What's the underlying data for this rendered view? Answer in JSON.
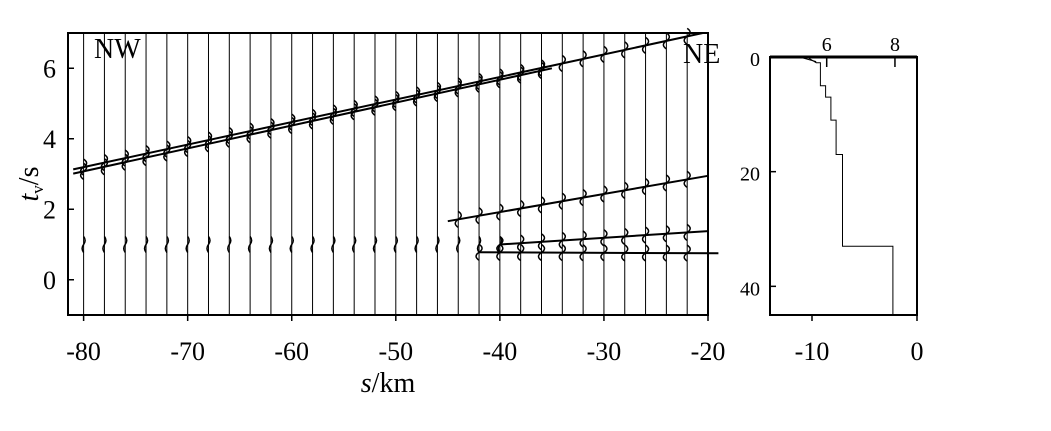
{
  "chart_data": [
    {
      "type": "line",
      "panel": "seismic record section",
      "xlabel_var": "s",
      "xlabel_unit": "/km",
      "ylabel_var": "t",
      "ylabel_sub": "v",
      "ylabel_unit": "/s",
      "xlim": [
        -81.5,
        -20
      ],
      "ylim": [
        -1,
        7
      ],
      "x_ticks": [
        -80,
        -70,
        -60,
        -50,
        -40,
        -30,
        -20
      ],
      "y_ticks": [
        0,
        2,
        4,
        6
      ],
      "left_label": "NW",
      "right_label": "NE",
      "trace_spacing_km": 2,
      "series": [
        {
          "x": [
            -81,
            -20.5
          ],
          "y": [
            3.13,
            7.0
          ]
        },
        {
          "x": [
            -81,
            -35
          ],
          "y": [
            3.01,
            6.0
          ]
        },
        {
          "x": [
            -45,
            -20
          ],
          "y": [
            1.66,
            2.95
          ]
        },
        {
          "x": [
            -40,
            -20
          ],
          "y": [
            1.0,
            1.38
          ]
        },
        {
          "x": [
            -42,
            -19
          ],
          "y": [
            0.78,
            0.75
          ]
        },
        {
          "x": [
            -80,
            -40
          ],
          "y": [
            1.0,
            1.0
          ]
        }
      ]
    },
    {
      "type": "line",
      "panel": "velocity-depth profile",
      "xlim": [
        -14,
        0
      ],
      "ylim": [
        45,
        0
      ],
      "x_ticks": [
        -10,
        0
      ],
      "y_ticks": [
        0,
        20,
        40
      ],
      "top_ticks": [
        6,
        8
      ],
      "profile_depth_km": [
        0,
        1,
        1,
        5,
        5,
        7,
        7,
        11,
        11,
        17,
        17,
        33,
        33,
        45
      ],
      "profile_x": [
        -10.5,
        -9.6,
        -9.2,
        -9.2,
        -8.7,
        -8.7,
        -8.2,
        -8.2,
        -7.7,
        -7.7,
        -7.1,
        -7.1,
        -2.3,
        -2.3
      ]
    }
  ]
}
